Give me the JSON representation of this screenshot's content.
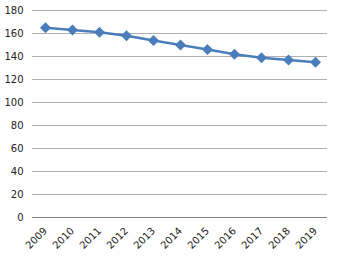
{
  "chart_data": {
    "type": "line",
    "categories": [
      "2009",
      "2010",
      "2011",
      "2012",
      "2013",
      "2014",
      "2015",
      "2016",
      "2017",
      "2018",
      "2019"
    ],
    "values": [
      165,
      163,
      161,
      158,
      154,
      150,
      146,
      142,
      139,
      137,
      135
    ],
    "color": "#4a7ebb",
    "marker": "diamond",
    "ylim": [
      0,
      180
    ],
    "yticks": [
      0,
      20,
      40,
      60,
      80,
      100,
      120,
      140,
      160,
      180
    ],
    "grid": true
  }
}
